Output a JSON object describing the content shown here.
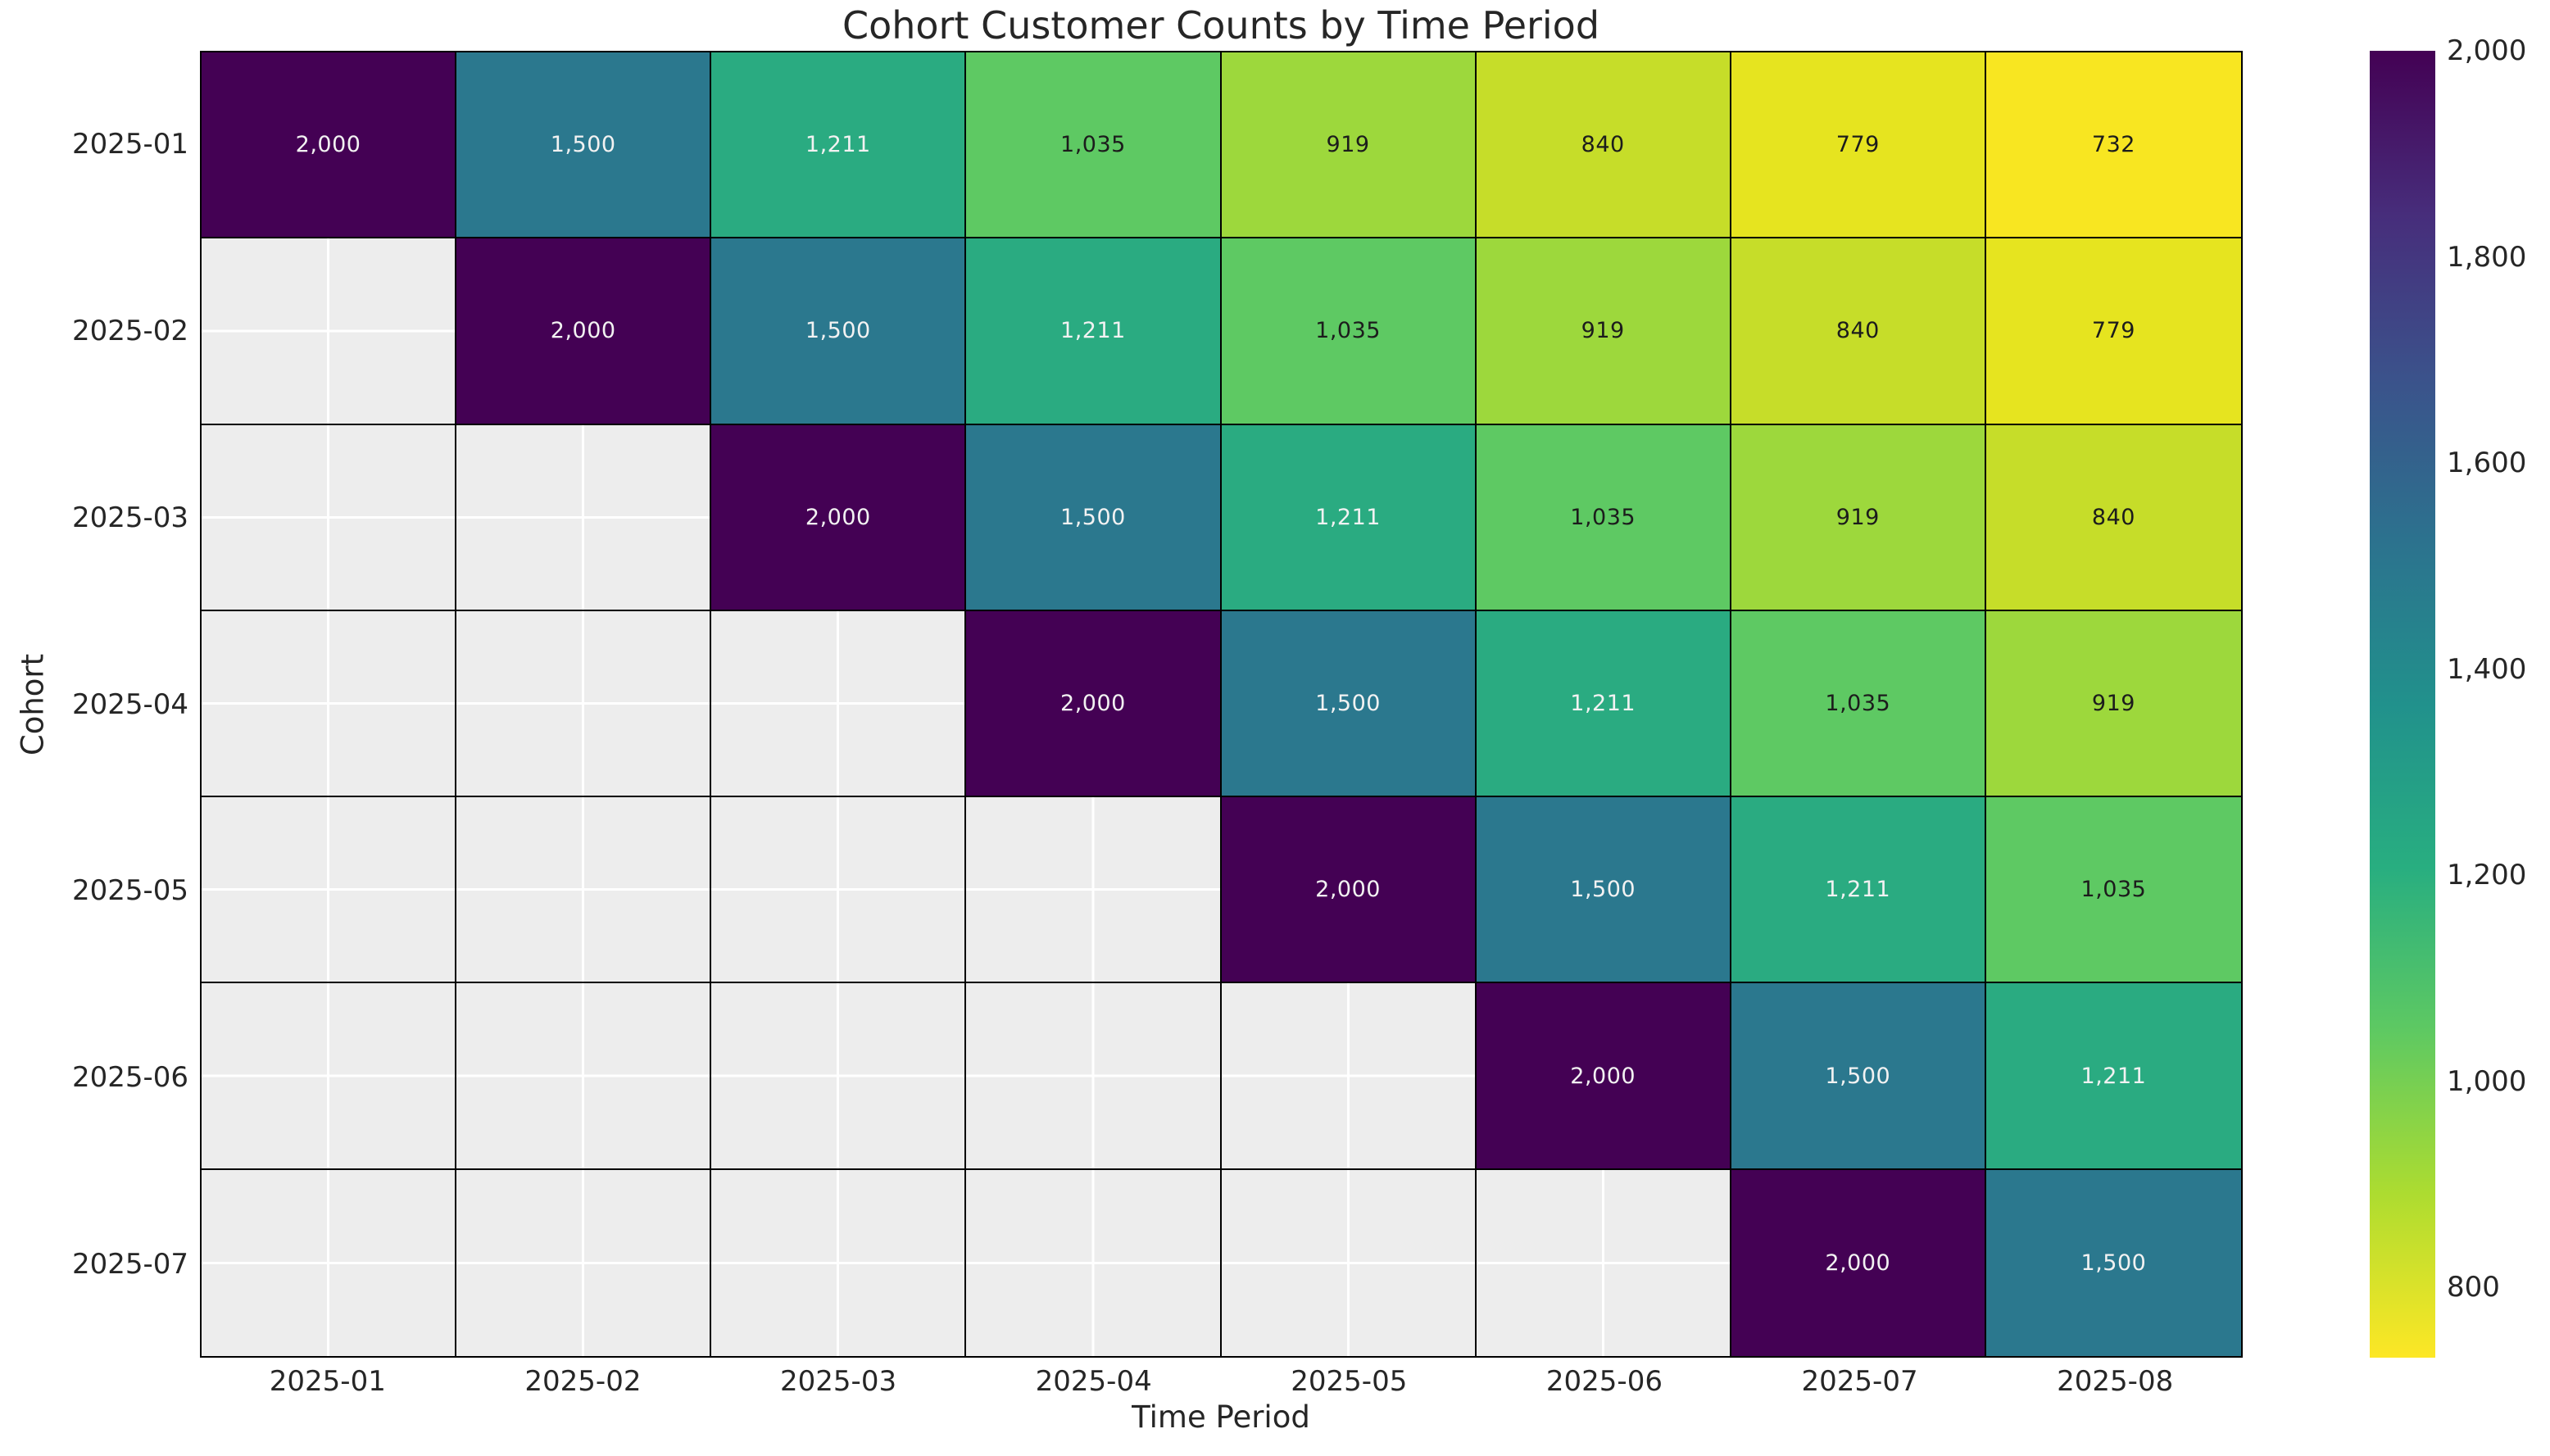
{
  "chart_data": {
    "type": "heatmap",
    "title": "Cohort Customer Counts by Time Period",
    "xlabel": "Time Period",
    "ylabel": "Cohort",
    "x_categories": [
      "2025-01",
      "2025-02",
      "2025-03",
      "2025-04",
      "2025-05",
      "2025-06",
      "2025-07",
      "2025-08"
    ],
    "y_categories": [
      "2025-01",
      "2025-02",
      "2025-03",
      "2025-04",
      "2025-05",
      "2025-06",
      "2025-07"
    ],
    "matrix": [
      [
        2000,
        1500,
        1211,
        1035,
        919,
        840,
        779,
        732
      ],
      [
        null,
        2000,
        1500,
        1211,
        1035,
        919,
        840,
        779
      ],
      [
        null,
        null,
        2000,
        1500,
        1211,
        1035,
        919,
        840
      ],
      [
        null,
        null,
        null,
        2000,
        1500,
        1211,
        1035,
        919
      ],
      [
        null,
        null,
        null,
        null,
        2000,
        1500,
        1211,
        1035
      ],
      [
        null,
        null,
        null,
        null,
        null,
        2000,
        1500,
        1211
      ],
      [
        null,
        null,
        null,
        null,
        null,
        null,
        2000,
        1500
      ]
    ],
    "value_labels": {
      "2000": "2,000",
      "1500": "1,500",
      "1211": "1,211",
      "1035": "1,035",
      "919": "919",
      "840": "840",
      "779": "779",
      "732": "732"
    },
    "value_styles": {
      "2000": {
        "bg": "#440154",
        "text": "#f2f2f2"
      },
      "1500": {
        "bg": "#2b788e",
        "text": "#f2f2f2"
      },
      "1211": {
        "bg": "#2aab81",
        "text": "#f2f2f2"
      },
      "1035": {
        "bg": "#5ec963",
        "text": "#1c1c1c"
      },
      "919": {
        "bg": "#9dd83c",
        "text": "#1c1c1c"
      },
      "840": {
        "bg": "#c6dd29",
        "text": "#1c1c1c"
      },
      "779": {
        "bg": "#e6e41f",
        "text": "#1c1c1c"
      },
      "732": {
        "bg": "#f8e621",
        "text": "#1c1c1c"
      }
    },
    "empty_cell_color": "#ededed",
    "grid_line_color": "#000000",
    "minor_grid_line_color": "#ffffff",
    "legend_position": "right",
    "colorbar": {
      "vmin": 732,
      "vmax": 2000,
      "ticks": [
        {
          "value": 2000,
          "label": "2,000"
        },
        {
          "value": 1800,
          "label": "1,800"
        },
        {
          "value": 1600,
          "label": "1,600"
        },
        {
          "value": 1400,
          "label": "1,400"
        },
        {
          "value": 1200,
          "label": "1,200"
        },
        {
          "value": 1000,
          "label": "1,000"
        },
        {
          "value": 800,
          "label": "800"
        }
      ],
      "gradient_top_to_bottom": [
        "#440154",
        "#472d7b",
        "#3b528b",
        "#2c728e",
        "#21918c",
        "#28ae80",
        "#5ec962",
        "#addc30",
        "#fde725"
      ]
    }
  }
}
